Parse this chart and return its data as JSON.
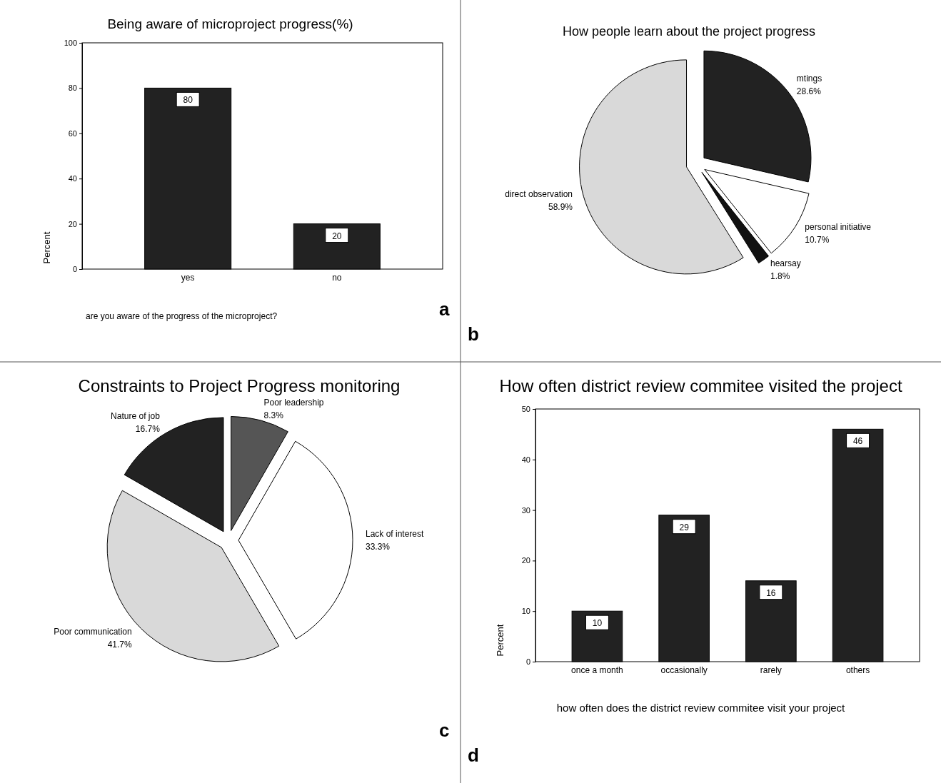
{
  "chart_data": [
    {
      "type": "bar",
      "title": "Being aware of microproject progress(%)",
      "xlabel": "are you aware of the progress of the microproject?",
      "ylabel": "Percent",
      "categories": [
        "yes",
        "no"
      ],
      "values": [
        80,
        20
      ],
      "color": "#222222",
      "ylim": [
        0,
        100
      ],
      "yticks": [
        0,
        20,
        40,
        60,
        80,
        100
      ],
      "data_labels": true,
      "annotations": [
        "a"
      ]
    },
    {
      "type": "pie",
      "title": "How people learn about the project progress",
      "categories": [
        "mtings",
        "personal initiative",
        "hearsay",
        "direct observation"
      ],
      "values": [
        28.6,
        10.7,
        1.8,
        58.9
      ],
      "colors": [
        "#222222",
        "#ffffff",
        "#111111",
        "#d9d9d9"
      ],
      "value_labels": [
        "28.6%",
        "10.7%",
        "1.8%",
        "58.9%"
      ],
      "annotations": [
        "b"
      ]
    },
    {
      "type": "pie",
      "title": "Constraints to Project Progress monitoring",
      "categories": [
        "Poor leadership",
        "Lack of interest",
        "Poor communication",
        "Nature of job"
      ],
      "values": [
        8.3,
        33.3,
        41.7,
        16.7
      ],
      "colors": [
        "#555555",
        "#ffffff",
        "#d9d9d9",
        "#222222"
      ],
      "value_labels": [
        "8.3%",
        "33.3%",
        "41.7%",
        "16.7%"
      ],
      "annotations": [
        "c"
      ]
    },
    {
      "type": "bar",
      "title": "How often district review commitee visited the project",
      "xlabel": "how often does the district review commitee visit your project",
      "ylabel": "Percent",
      "categories": [
        "once a month",
        "occasionally",
        "rarely",
        "others"
      ],
      "values": [
        10,
        29,
        16,
        46
      ],
      "color": "#222222",
      "ylim": [
        0,
        50
      ],
      "yticks": [
        0,
        10,
        20,
        30,
        40,
        50
      ],
      "data_labels": true,
      "annotations": [
        "d"
      ]
    }
  ]
}
